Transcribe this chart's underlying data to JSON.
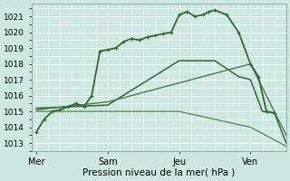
{
  "xlabel": "Pression niveau de la mer( hPa )",
  "bg_color": "#cce8e0",
  "grid_color": "#ffffff",
  "ylim": [
    1012.5,
    1021.8
  ],
  "xlim": [
    -0.2,
    10.5
  ],
  "yticks": [
    1013,
    1014,
    1015,
    1016,
    1017,
    1018,
    1019,
    1020,
    1021
  ],
  "day_labels": [
    "Mer",
    "Sam",
    "Jeu",
    "Ven"
  ],
  "day_positions": [
    0,
    3,
    6,
    9
  ],
  "series": [
    {
      "x": [
        0,
        0.33,
        0.67,
        1.0,
        1.33,
        1.67,
        2.0,
        2.33,
        2.67,
        3.0,
        3.33,
        3.67,
        4.0,
        4.33,
        4.67,
        5.0,
        5.33,
        5.67,
        6.0,
        6.33,
        6.67,
        7.0,
        7.25,
        7.5,
        8.0,
        8.5,
        9.0,
        9.33,
        9.67,
        10.0
      ],
      "y": [
        1013.7,
        1014.5,
        1015.0,
        1015.1,
        1015.3,
        1015.5,
        1015.3,
        1016.0,
        1018.8,
        1018.9,
        1019.0,
        1019.4,
        1019.6,
        1019.5,
        1019.7,
        1019.8,
        1019.9,
        1020.0,
        1021.1,
        1021.3,
        1021.0,
        1021.1,
        1021.3,
        1021.4,
        1021.1,
        1020.0,
        1018.0,
        1017.2,
        1015.0,
        1014.9
      ],
      "color": "#2d6a2d",
      "lw": 1.3,
      "marker": "+",
      "ms": 3.5
    },
    {
      "x": [
        0,
        3,
        6,
        7.5,
        8.5,
        9.0,
        9.5,
        10.0,
        10.5
      ],
      "y": [
        1015.2,
        1015.4,
        1018.2,
        1018.2,
        1017.2,
        1017.0,
        1015.0,
        1014.9,
        1013.0
      ],
      "color": "#336633",
      "lw": 1.1,
      "marker": null,
      "ms": 0
    },
    {
      "x": [
        0,
        3,
        6,
        9,
        10.0,
        10.5
      ],
      "y": [
        1015.1,
        1015.6,
        1016.8,
        1018.0,
        1015.0,
        1013.5
      ],
      "color": "#4a7a4a",
      "lw": 1.0,
      "marker": null,
      "ms": 0
    },
    {
      "x": [
        0,
        3,
        6,
        9,
        10.5
      ],
      "y": [
        1015.0,
        1015.0,
        1015.0,
        1014.0,
        1012.8
      ],
      "color": "#5d8a5d",
      "lw": 1.0,
      "marker": null,
      "ms": 0
    }
  ],
  "vline_color": "#336633",
  "vline_lw": 0.8
}
